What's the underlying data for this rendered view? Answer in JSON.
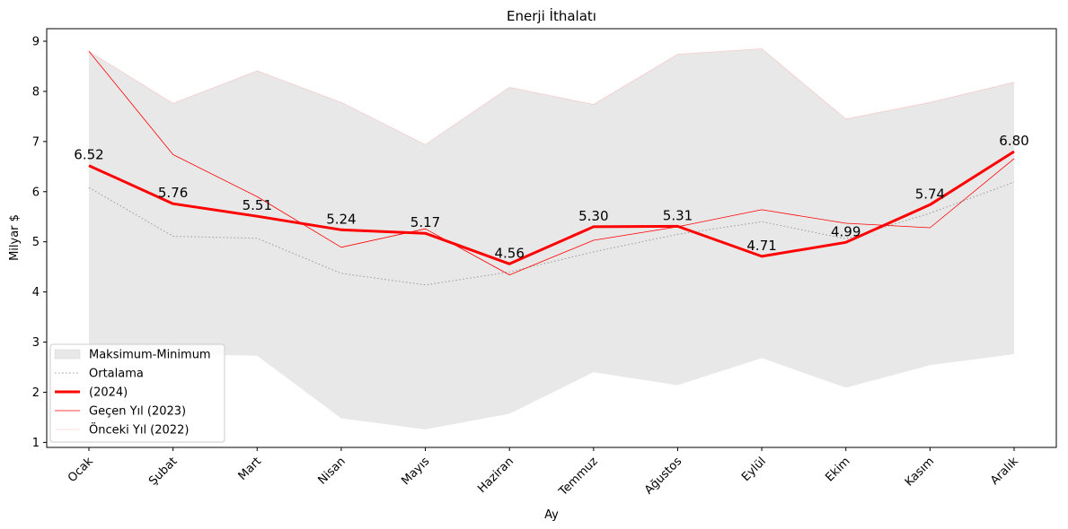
{
  "chart_data": {
    "type": "line",
    "title": "Enerji İthalatı",
    "xlabel": "Ay",
    "ylabel": "Milyar $",
    "ylim": [
      0.9,
      9.25
    ],
    "yticks": [
      1,
      2,
      3,
      4,
      5,
      6,
      7,
      8,
      9
    ],
    "categories": [
      "Ocak",
      "Şubat",
      "Mart",
      "Nisan",
      "Mayıs",
      "Haziran",
      "Temmuz",
      "Ağustos",
      "Eylül",
      "Ekim",
      "Kasım",
      "Aralık"
    ],
    "band": {
      "name": "Maksimum-Minimum",
      "max": [
        8.8,
        7.76,
        8.41,
        7.78,
        6.94,
        8.08,
        7.74,
        8.74,
        8.85,
        7.45,
        7.78,
        8.18
      ],
      "min": [
        2.9,
        2.76,
        2.73,
        1.48,
        1.26,
        1.57,
        2.4,
        2.14,
        2.68,
        2.09,
        2.54,
        2.76
      ],
      "color": "#e8e8e8"
    },
    "series": [
      {
        "name": "Ortalama",
        "values": [
          6.08,
          5.11,
          5.07,
          4.37,
          4.14,
          4.4,
          4.8,
          5.15,
          5.4,
          5.06,
          5.57,
          6.19
        ],
        "color": "#999999",
        "style": "dotted"
      },
      {
        "name": " (2024)",
        "values": [
          6.52,
          5.76,
          5.51,
          5.24,
          5.17,
          4.56,
          5.3,
          5.31,
          4.71,
          4.99,
          5.74,
          6.8
        ],
        "color": "#ff0000",
        "style": "bold"
      },
      {
        "name": "Geçen Yıl (2023)",
        "values": [
          8.8,
          6.74,
          5.9,
          4.89,
          5.26,
          4.34,
          5.03,
          5.3,
          5.64,
          5.37,
          5.28,
          6.66
        ],
        "color": "#ff0000",
        "style": "thin"
      },
      {
        "name": "Önceki Yıl (2022)",
        "values": [
          8.8,
          7.76,
          8.41,
          7.78,
          6.94,
          8.08,
          7.74,
          8.74,
          8.85,
          7.45,
          7.78,
          8.18
        ],
        "color": "#ff8888",
        "style": "faint"
      }
    ],
    "data_labels": [
      "6.52",
      "5.76",
      "5.51",
      "5.24",
      "5.17",
      "4.56",
      "5.30",
      "5.31",
      "4.71",
      "4.99",
      "5.74",
      "6.80"
    ],
    "legend_position": "lower-left",
    "grid": false
  }
}
